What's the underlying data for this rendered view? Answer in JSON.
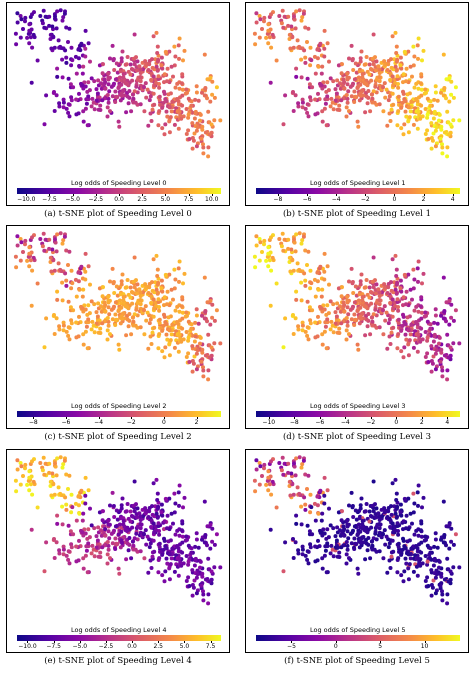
{
  "chart_data": [
    {
      "type": "scatter",
      "caption": "(a) t-SNE plot of Speeding Level 0",
      "colorbar_label": "Log odds of Speeding Level 0",
      "colorbar_range": [
        -11,
        11
      ],
      "ticks": [
        "−10.0",
        "−7.5",
        "−5.0",
        "−2.5",
        "0.0",
        "2.5",
        "5.0",
        "7.5",
        "10.0"
      ],
      "tick_values": [
        -10,
        -7.5,
        -5,
        -2.5,
        0,
        2.5,
        5,
        7.5,
        10
      ],
      "colormap": "plasma",
      "pattern": "left-low-right-high"
    },
    {
      "type": "scatter",
      "caption": "(b) t-SNE plot of Speeding Level 1",
      "colorbar_label": "Log odds of Speeding Level 1",
      "colorbar_range": [
        -9.5,
        4.5
      ],
      "ticks": [
        "−8",
        "−6",
        "−4",
        "−2",
        "0",
        "2",
        "4"
      ],
      "tick_values": [
        -8,
        -6,
        -4,
        -2,
        0,
        2,
        4
      ],
      "colormap": "plasma",
      "pattern": "right-high"
    },
    {
      "type": "scatter",
      "caption": "(c) t-SNE plot of Speeding Level 2",
      "colorbar_label": "Log odds of Speeding Level 2",
      "colorbar_range": [
        -9,
        3.5
      ],
      "ticks": [
        "−8",
        "−6",
        "−4",
        "−2",
        "0",
        "2"
      ],
      "tick_values": [
        -8,
        -6,
        -4,
        -2,
        0,
        2
      ],
      "colormap": "plasma",
      "pattern": "mostly-high"
    },
    {
      "type": "scatter",
      "caption": "(d) t-SNE plot of Speeding Level 3",
      "colorbar_label": "Log odds of Speeding Level 3",
      "colorbar_range": [
        -11,
        5
      ],
      "ticks": [
        "−10",
        "−8",
        "−6",
        "−4",
        "−2",
        "0",
        "2",
        "4"
      ],
      "tick_values": [
        -10,
        -8,
        -6,
        -4,
        -2,
        0,
        2,
        4
      ],
      "colormap": "plasma",
      "pattern": "left-high-right-low"
    },
    {
      "type": "scatter",
      "caption": "(e) t-SNE plot of Speeding Level 4",
      "colorbar_label": "Log odds of Speeding Level 4",
      "colorbar_range": [
        -11,
        8.5
      ],
      "ticks": [
        "−10.0",
        "−7.5",
        "−5.0",
        "−2.5",
        "0.0",
        "2.5",
        "5.0",
        "7.5"
      ],
      "tick_values": [
        -10,
        -7.5,
        -5,
        -2.5,
        0,
        2.5,
        5,
        7.5
      ],
      "colormap": "plasma",
      "pattern": "top-left-high"
    },
    {
      "type": "scatter",
      "caption": "(f) t-SNE plot of Speeding Level 5",
      "colorbar_label": "Log odds of Speeding Level 5",
      "colorbar_range": [
        -9,
        14
      ],
      "ticks": [
        "−5",
        "0",
        "5",
        "10"
      ],
      "tick_values": [
        -5,
        0,
        5,
        10
      ],
      "colormap": "plasma",
      "pattern": "mostly-low"
    }
  ]
}
